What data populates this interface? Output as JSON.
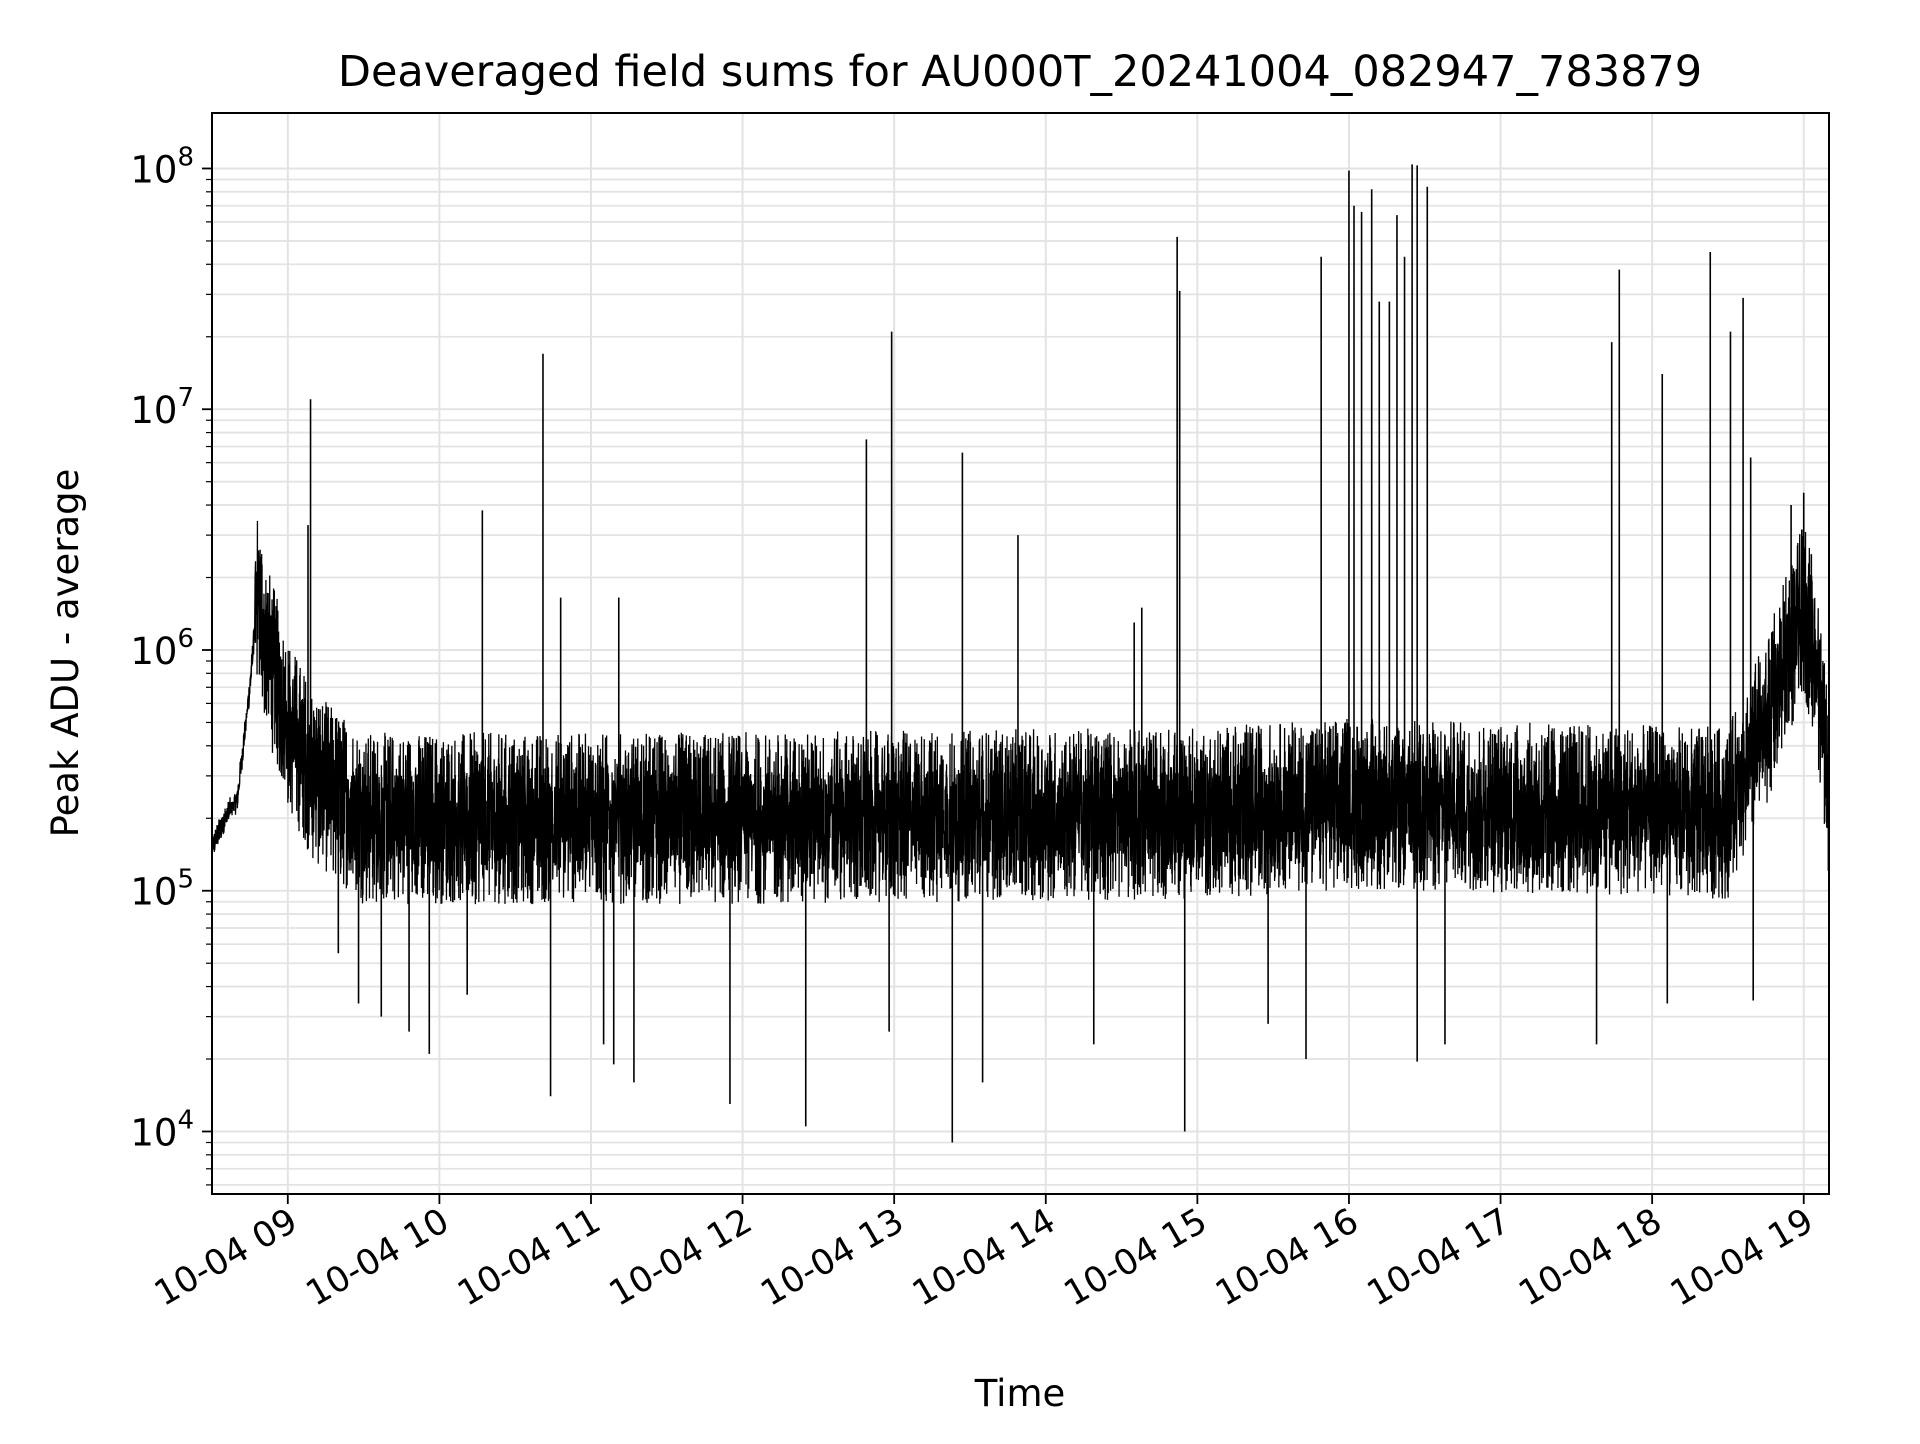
{
  "chart_data": {
    "type": "line",
    "title": "Deaveraged field sums for AU000T_20241004_082947_783879",
    "xlabel": "Time",
    "ylabel": "Peak ADU - average",
    "yscale": "log",
    "ylim": [
      5500,
      170000000
    ],
    "xlim": [
      "2024-10-04T08:30:00",
      "2024-10-04T19:10:00"
    ],
    "grid": true,
    "x_tick_labels": [
      "10-04 09",
      "10-04 10",
      "10-04 11",
      "10-04 12",
      "10-04 13",
      "10-04 14",
      "10-04 15",
      "10-04 16",
      "10-04 17",
      "10-04 18",
      "10-04 19"
    ],
    "y_tick_labels": [
      {
        "base": "10",
        "exp": "4",
        "value": 10000
      },
      {
        "base": "10",
        "exp": "5",
        "value": 100000
      },
      {
        "base": "10",
        "exp": "6",
        "value": 1000000
      },
      {
        "base": "10",
        "exp": "7",
        "value": 10000000
      },
      {
        "base": "10",
        "exp": "8",
        "value": 100000000
      }
    ],
    "line_color": "#000000",
    "baseline_segments": [
      {
        "x": "2024-10-04T08:30:00",
        "y": 150000
      },
      {
        "x": "2024-10-04T08:35:00",
        "y": 200000
      },
      {
        "x": "2024-10-04T08:40:00",
        "y": 240000
      },
      {
        "x": "2024-10-04T08:45:00",
        "y": 700000
      },
      {
        "x": "2024-10-04T08:48:00",
        "y": 1700000
      },
      {
        "x": "2024-10-04T08:52:00",
        "y": 1000000
      },
      {
        "x": "2024-10-04T09:00:00",
        "y": 500000
      },
      {
        "x": "2024-10-04T09:10:00",
        "y": 300000
      },
      {
        "x": "2024-10-04T09:30:00",
        "y": 200000
      },
      {
        "x": "2024-10-04T12:00:00",
        "y": 200000
      },
      {
        "x": "2024-10-04T15:00:00",
        "y": 210000
      },
      {
        "x": "2024-10-04T16:00:00",
        "y": 230000
      },
      {
        "x": "2024-10-04T18:30:00",
        "y": 210000
      },
      {
        "x": "2024-10-04T18:45:00",
        "y": 500000
      },
      {
        "x": "2024-10-04T19:00:00",
        "y": 1500000
      },
      {
        "x": "2024-10-04T19:05:00",
        "y": 900000
      },
      {
        "x": "2024-10-04T19:10:00",
        "y": 250000
      }
    ],
    "spikes": [
      {
        "x": "2024-10-04T09:08:00",
        "y": 3300000
      },
      {
        "x": "2024-10-04T09:09:00",
        "y": 11000000
      },
      {
        "x": "2024-10-04T10:17:00",
        "y": 3800000
      },
      {
        "x": "2024-10-04T10:41:00",
        "y": 17000000
      },
      {
        "x": "2024-10-04T10:48:00",
        "y": 1650000
      },
      {
        "x": "2024-10-04T11:11:00",
        "y": 1650000
      },
      {
        "x": "2024-10-04T12:49:00",
        "y": 7500000
      },
      {
        "x": "2024-10-04T12:59:00",
        "y": 21000000
      },
      {
        "x": "2024-10-04T13:27:00",
        "y": 6600000
      },
      {
        "x": "2024-10-04T13:49:00",
        "y": 3000000
      },
      {
        "x": "2024-10-04T14:35:00",
        "y": 1300000
      },
      {
        "x": "2024-10-04T14:38:00",
        "y": 1500000
      },
      {
        "x": "2024-10-04T14:52:00",
        "y": 52000000
      },
      {
        "x": "2024-10-04T14:53:00",
        "y": 31000000
      },
      {
        "x": "2024-10-04T15:49:00",
        "y": 43000000
      },
      {
        "x": "2024-10-04T16:00:00",
        "y": 98000000
      },
      {
        "x": "2024-10-04T16:02:00",
        "y": 70000000
      },
      {
        "x": "2024-10-04T16:05:00",
        "y": 66000000
      },
      {
        "x": "2024-10-04T16:09:00",
        "y": 82000000
      },
      {
        "x": "2024-10-04T16:12:00",
        "y": 28000000
      },
      {
        "x": "2024-10-04T16:16:00",
        "y": 28000000
      },
      {
        "x": "2024-10-04T16:19:00",
        "y": 64000000
      },
      {
        "x": "2024-10-04T16:22:00",
        "y": 43000000
      },
      {
        "x": "2024-10-04T16:25:00",
        "y": 104000000
      },
      {
        "x": "2024-10-04T16:27:00",
        "y": 103000000
      },
      {
        "x": "2024-10-04T16:31:00",
        "y": 84000000
      },
      {
        "x": "2024-10-04T17:44:00",
        "y": 19000000
      },
      {
        "x": "2024-10-04T17:47:00",
        "y": 38000000
      },
      {
        "x": "2024-10-04T18:04:00",
        "y": 14000000
      },
      {
        "x": "2024-10-04T18:23:00",
        "y": 45000000
      },
      {
        "x": "2024-10-04T18:31:00",
        "y": 21000000
      },
      {
        "x": "2024-10-04T18:36:00",
        "y": 29000000
      },
      {
        "x": "2024-10-04T18:39:00",
        "y": 6300000
      },
      {
        "x": "2024-10-04T18:55:00",
        "y": 4000000
      },
      {
        "x": "2024-10-04T19:00:00",
        "y": 4500000
      },
      {
        "x": "2024-10-04T19:03:00",
        "y": 2500000
      }
    ],
    "dips": [
      {
        "x": "2024-10-04T09:20:00",
        "y": 55000
      },
      {
        "x": "2024-10-04T09:28:00",
        "y": 34000
      },
      {
        "x": "2024-10-04T09:37:00",
        "y": 30000
      },
      {
        "x": "2024-10-04T09:48:00",
        "y": 26000
      },
      {
        "x": "2024-10-04T09:56:00",
        "y": 21000
      },
      {
        "x": "2024-10-04T10:11:00",
        "y": 37000
      },
      {
        "x": "2024-10-04T10:44:00",
        "y": 14000
      },
      {
        "x": "2024-10-04T11:05:00",
        "y": 23000
      },
      {
        "x": "2024-10-04T11:09:00",
        "y": 19000
      },
      {
        "x": "2024-10-04T11:17:00",
        "y": 16000
      },
      {
        "x": "2024-10-04T11:55:00",
        "y": 13000
      },
      {
        "x": "2024-10-04T12:25:00",
        "y": 10500
      },
      {
        "x": "2024-10-04T12:58:00",
        "y": 26000
      },
      {
        "x": "2024-10-04T13:23:00",
        "y": 9000
      },
      {
        "x": "2024-10-04T13:35:00",
        "y": 16000
      },
      {
        "x": "2024-10-04T14:19:00",
        "y": 23000
      },
      {
        "x": "2024-10-04T14:55:00",
        "y": 10000
      },
      {
        "x": "2024-10-04T15:28:00",
        "y": 28000
      },
      {
        "x": "2024-10-04T15:43:00",
        "y": 20000
      },
      {
        "x": "2024-10-04T16:27:00",
        "y": 19500
      },
      {
        "x": "2024-10-04T16:38:00",
        "y": 23000
      },
      {
        "x": "2024-10-04T17:38:00",
        "y": 23000
      },
      {
        "x": "2024-10-04T18:06:00",
        "y": 34000
      },
      {
        "x": "2024-10-04T18:40:00",
        "y": 35000
      }
    ]
  }
}
